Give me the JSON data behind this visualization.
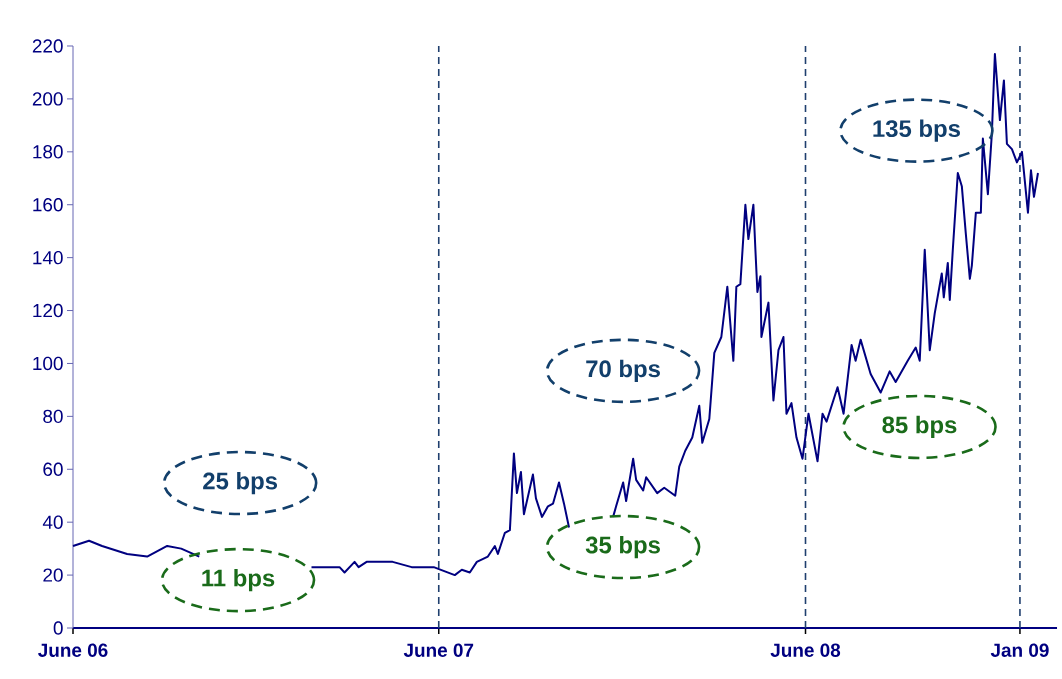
{
  "chart_data": {
    "type": "line",
    "color": "#000080",
    "line_style": "solid",
    "x": [
      "2006-06-01",
      "2006-06-17",
      "2006-06-30",
      "2006-07-25",
      "2006-08-14",
      "2006-09-03",
      "2006-09-17",
      "2006-10-05",
      "2006-10-16",
      "2007-01-25",
      "2007-02-22",
      "2007-02-27",
      "2007-03-09",
      "2007-03-13",
      "2007-03-21",
      "2007-04-16",
      "2007-05-05",
      "2007-05-27",
      "2007-06-17",
      "2007-06-24",
      "2007-07-02",
      "2007-07-09",
      "2007-07-20",
      "2007-07-27",
      "2007-07-30",
      "2007-08-06",
      "2007-08-11",
      "2007-08-15",
      "2007-08-18",
      "2007-08-22",
      "2007-08-25",
      "2007-09-03",
      "2007-09-06",
      "2007-09-12",
      "2007-09-18",
      "2007-09-23",
      "2007-09-29",
      "2007-10-04",
      "2007-10-09",
      "2007-10-25",
      "2007-11-22",
      "2007-11-25",
      "2007-12-02",
      "2007-12-05",
      "2007-12-12",
      "2007-12-15",
      "2007-12-22",
      "2007-12-25",
      "2008-01-05",
      "2008-01-12",
      "2008-01-23",
      "2008-01-27",
      "2008-02-02",
      "2008-02-09",
      "2008-02-16",
      "2008-02-19",
      "2008-02-26",
      "2008-03-02",
      "2008-03-09",
      "2008-03-15",
      "2008-03-21",
      "2008-03-24",
      "2008-03-28",
      "2008-04-02",
      "2008-04-05",
      "2008-04-10",
      "2008-04-12",
      "2008-04-14",
      "2008-04-17",
      "2008-04-18",
      "2008-04-25",
      "2008-04-30",
      "2008-05-05",
      "2008-05-10",
      "2008-05-13",
      "2008-05-18",
      "2008-05-23",
      "2008-05-29",
      "2008-06-04",
      "2008-06-13",
      "2008-06-18",
      "2008-06-22",
      "2008-07-03",
      "2008-07-09",
      "2008-07-17",
      "2008-07-21",
      "2008-07-26",
      "2008-08-05",
      "2008-08-15",
      "2008-08-24",
      "2008-08-30",
      "2008-09-11",
      "2008-09-19",
      "2008-09-23",
      "2008-09-28",
      "2008-10-03",
      "2008-10-08",
      "2008-10-15",
      "2008-10-17",
      "2008-10-21",
      "2008-10-23",
      "2008-10-26",
      "2008-10-31",
      "2008-11-04",
      "2008-11-08",
      "2008-11-12",
      "2008-11-14",
      "2008-11-18",
      "2008-11-23",
      "2008-11-25",
      "2008-11-30",
      "2008-12-04",
      "2008-12-07",
      "2008-12-12",
      "2008-12-16",
      "2008-12-19",
      "2008-12-24",
      "2008-12-29",
      "2009-01-03",
      "2009-01-09",
      "2009-01-12",
      "2009-01-15",
      "2009-01-19"
    ],
    "values": [
      31,
      33,
      31,
      28,
      27,
      31,
      30,
      27,
      null,
      23,
      23,
      21,
      25,
      23,
      25,
      25,
      23,
      23,
      20,
      22,
      21,
      25,
      27,
      31,
      28,
      36,
      37,
      66,
      51,
      59,
      43,
      58,
      49,
      42,
      46,
      47,
      55,
      47,
      38,
      null,
      42,
      46,
      55,
      48,
      64,
      56,
      52,
      57,
      51,
      53,
      50,
      61,
      67,
      72,
      84,
      70,
      79,
      104,
      110,
      129,
      101,
      129,
      130,
      160,
      147,
      160,
      143,
      127,
      133,
      110,
      123,
      86,
      105,
      110,
      81,
      85,
      72,
      64,
      81,
      63,
      81,
      78,
      91,
      81,
      107,
      101,
      109,
      96,
      89,
      97,
      93,
      101,
      106,
      101,
      143,
      105,
      119,
      134,
      125,
      138,
      124,
      143,
      172,
      167,
      149,
      132,
      137,
      157,
      157,
      185,
      164,
      187,
      217,
      192,
      207,
      183,
      181,
      176,
      180,
      157,
      173,
      163,
      172
    ],
    "xlim": [
      "2006-06-01",
      "2009-02-07"
    ],
    "xticks": [
      {
        "value": "2006-06-01",
        "label": "June 06"
      },
      {
        "value": "2007-06-01",
        "label": "June 07"
      },
      {
        "value": "2008-06-01",
        "label": "June 08"
      },
      {
        "value": "2009-01-01",
        "label": "Jan 09"
      }
    ],
    "ylim": [
      0,
      220
    ],
    "yticks": [
      0,
      20,
      40,
      60,
      80,
      100,
      120,
      140,
      160,
      180,
      200,
      220
    ],
    "ref_lines": [
      {
        "axis": "x",
        "value": "2007-06-01",
        "color": "#1f3f6e",
        "line_style": "dashed"
      },
      {
        "axis": "x",
        "value": "2008-06-01",
        "color": "#1f3f6e",
        "line_style": "dashed"
      },
      {
        "axis": "x",
        "value": "2009-01-01",
        "color": "#1f3f6e",
        "line_style": "dashed"
      }
    ],
    "annotations": [
      "25 bps",
      "11 bps",
      "70 bps",
      "35 bps",
      "135 bps",
      "85 bps"
    ]
  }
}
